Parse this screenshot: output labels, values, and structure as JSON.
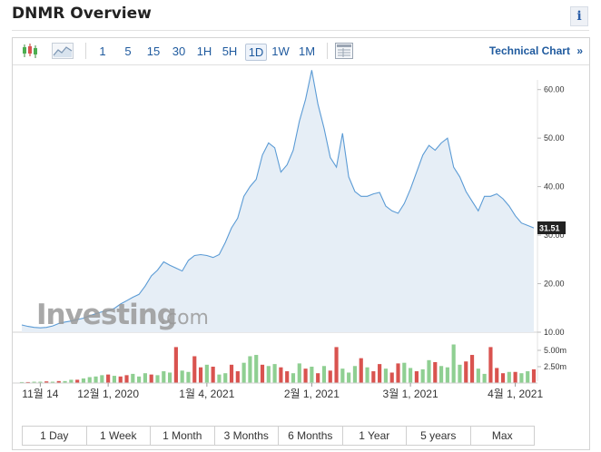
{
  "title": "DNMR Overview",
  "info_icon": "i",
  "toolbar": {
    "chart_type_icons": [
      "candlestick-icon",
      "area-chart-icon"
    ],
    "intervals": [
      "1",
      "5",
      "15",
      "30",
      "1H",
      "5H",
      "1D",
      "1W",
      "1M"
    ],
    "active_interval": "1D",
    "table_icon": "table-icon",
    "technical_chart_label": "Technical Chart",
    "technical_chart_chevron": "»"
  },
  "watermark": {
    "main": "Investing",
    "suffix": ".com"
  },
  "colors": {
    "line": "#5b9bd5",
    "area": "#e6eef6",
    "vol_up": "#8fcf92",
    "vol_down": "#d9534f",
    "last_price_bg": "#222222"
  },
  "chart_data": {
    "type": "area",
    "price_axis": {
      "ticks": [
        "60.00",
        "50.00",
        "40.00",
        "30.00",
        "20.00",
        "10.00"
      ],
      "ylim": [
        10,
        62
      ]
    },
    "volume_axis": {
      "ticks": [
        "5.00m",
        "2.50m"
      ],
      "ylim": [
        0,
        7.5
      ]
    },
    "x_ticks": [
      "11월 14",
      "12월 1, 2020",
      "1월 4, 2021",
      "2월 1, 2021",
      "3월 1, 2021",
      "4월 1, 2021"
    ],
    "last_price": "31.51",
    "close": [
      11.5,
      11.2,
      11.0,
      10.9,
      11.0,
      11.3,
      11.8,
      12.1,
      12.3,
      12.6,
      12.9,
      13.4,
      13.8,
      14.2,
      14.4,
      14.9,
      15.8,
      16.5,
      17.2,
      17.8,
      19.5,
      21.6,
      22.8,
      24.5,
      23.8,
      23.2,
      22.6,
      24.8,
      25.8,
      26.0,
      25.8,
      25.4,
      26.0,
      28.5,
      31.5,
      33.5,
      38.0,
      40.0,
      41.5,
      46.5,
      49.0,
      48.0,
      43.0,
      44.5,
      47.5,
      53.5,
      58.0,
      64.0,
      57.0,
      52.0,
      46.0,
      44.0,
      51.0,
      42.0,
      39.0,
      38.0,
      38.0,
      38.5,
      38.8,
      36.0,
      35.0,
      34.5,
      36.5,
      39.5,
      43.0,
      46.5,
      48.5,
      47.5,
      49.0,
      50.0,
      44.0,
      42.0,
      39.0,
      37.0,
      35.0,
      38.0,
      38.0,
      38.5,
      37.5,
      36.0,
      34.0,
      32.5,
      32.0,
      31.5
    ],
    "volume": [
      0.15,
      0.15,
      0.2,
      0.2,
      0.25,
      0.2,
      0.3,
      0.3,
      0.5,
      0.5,
      0.7,
      0.9,
      1.0,
      1.2,
      1.3,
      1.1,
      1.0,
      1.2,
      1.4,
      1.0,
      1.5,
      1.3,
      1.2,
      1.8,
      1.6,
      5.5,
      1.9,
      1.7,
      4.1,
      2.4,
      2.8,
      2.5,
      1.3,
      1.5,
      2.8,
      1.8,
      3.1,
      4.1,
      4.3,
      2.8,
      2.6,
      2.9,
      2.4,
      1.8,
      1.5,
      3.0,
      2.2,
      2.5,
      1.5,
      2.6,
      1.9,
      5.5,
      2.2,
      1.6,
      2.6,
      3.8,
      2.4,
      1.8,
      2.9,
      2.2,
      1.6,
      3.0,
      3.1,
      2.3,
      1.8,
      2.1,
      3.5,
      3.2,
      2.6,
      2.4,
      5.9,
      2.8,
      3.3,
      4.3,
      2.2,
      1.4,
      5.5,
      2.3,
      1.5,
      1.7,
      1.7,
      1.5,
      1.8,
      2.1
    ],
    "volume_direction": [
      1,
      0,
      1,
      1,
      0,
      1,
      0,
      1,
      1,
      0,
      1,
      1,
      1,
      1,
      0,
      1,
      0,
      0,
      1,
      1,
      1,
      0,
      1,
      1,
      1,
      0,
      1,
      1,
      0,
      0,
      1,
      0,
      1,
      1,
      0,
      0,
      1,
      1,
      1,
      0,
      1,
      1,
      0,
      0,
      1,
      1,
      0,
      1,
      0,
      1,
      0,
      0,
      1,
      1,
      1,
      0,
      1,
      0,
      0,
      1,
      0,
      0,
      1,
      1,
      0,
      1,
      1,
      0,
      1,
      1,
      1,
      1,
      0,
      0,
      1,
      1,
      0,
      0,
      0,
      1,
      0,
      1,
      1,
      0
    ]
  },
  "range_buttons": [
    "1 Day",
    "1 Week",
    "1 Month",
    "3 Months",
    "6 Months",
    "1 Year",
    "5 years",
    "Max"
  ]
}
